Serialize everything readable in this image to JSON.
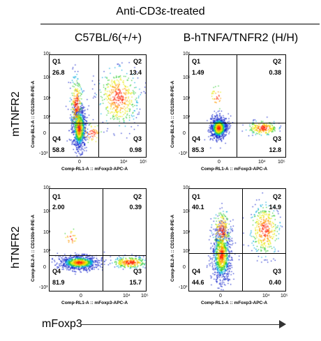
{
  "header": {
    "title": "Anti-CD3ε-treated"
  },
  "columns": [
    "C57BL/6(+/+)",
    "B-hTNFA/TNFR2 (H/H)"
  ],
  "rows": [
    "mTNFR2",
    "hTNFR2"
  ],
  "bottom_axis_label": "mFoxp3",
  "axis_titles": {
    "x": "Comp-RL1-A :: mFoxp3-APC-A",
    "y_top_row": "Comp-BL2-A :: CD120b-R-PE-A",
    "y_bottom_row": "Comp-BL2-A :: CD120b-R-PE-A"
  },
  "ticks": {
    "x": [
      "0",
      "10⁴",
      "10⁵"
    ],
    "y": [
      "10⁶",
      "10⁵",
      "10⁴",
      "10³",
      "0",
      "-10³"
    ]
  },
  "quadrant_names": [
    "Q1",
    "Q2",
    "Q3",
    "Q4"
  ],
  "panels": [
    {
      "q1": "26.8",
      "q2": "13.4",
      "q3": "0.98",
      "q4": "58.8"
    },
    {
      "q1": "1.49",
      "q2": "0.38",
      "q3": "12.8",
      "q4": "85.3"
    },
    {
      "q1": "2.00",
      "q2": "0.39",
      "q3": "15.7",
      "q4": "81.9"
    },
    {
      "q1": "40.1",
      "q2": "14.9",
      "q3": "0.40",
      "q4": "44.6"
    }
  ]
}
